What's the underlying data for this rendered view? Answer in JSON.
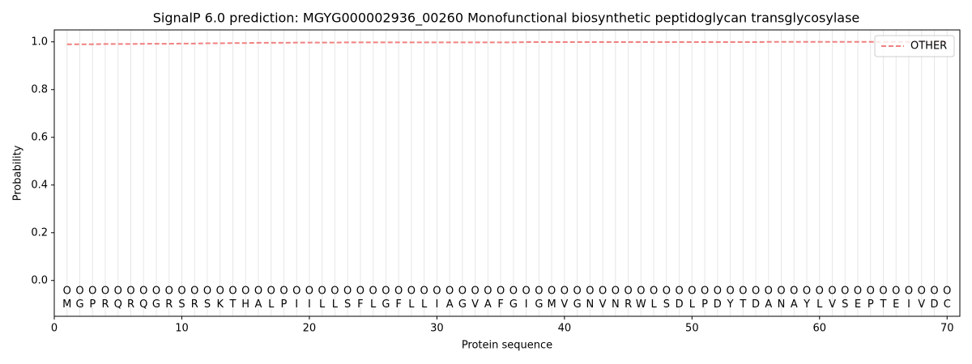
{
  "chart_data": {
    "type": "line",
    "title": "SignalP 6.0 prediction: MGYG000002936_00260 Monofunctional biosynthetic peptidoglycan transglycosylase",
    "xlabel": "Protein sequence",
    "ylabel": "Probability",
    "x": [
      1,
      2,
      3,
      4,
      5,
      6,
      7,
      8,
      9,
      10,
      11,
      12,
      13,
      14,
      15,
      16,
      17,
      18,
      19,
      20,
      21,
      22,
      23,
      24,
      25,
      26,
      27,
      28,
      29,
      30,
      31,
      32,
      33,
      34,
      35,
      36,
      37,
      38,
      39,
      40,
      41,
      42,
      43,
      44,
      45,
      46,
      47,
      48,
      49,
      50,
      51,
      52,
      53,
      54,
      55,
      56,
      57,
      58,
      59,
      60,
      61,
      62,
      63,
      64,
      65,
      66,
      67,
      68,
      69,
      70
    ],
    "residues": [
      "M",
      "G",
      "P",
      "R",
      "Q",
      "R",
      "Q",
      "G",
      "R",
      "S",
      "R",
      "S",
      "K",
      "T",
      "H",
      "A",
      "L",
      "P",
      "I",
      "I",
      "L",
      "L",
      "S",
      "F",
      "L",
      "G",
      "F",
      "L",
      "L",
      "I",
      "A",
      "G",
      "V",
      "A",
      "F",
      "G",
      "I",
      "G",
      "M",
      "V",
      "G",
      "N",
      "V",
      "N",
      "R",
      "W",
      "L",
      "S",
      "D",
      "L",
      "P",
      "D",
      "Y",
      "T",
      "D",
      "A",
      "N",
      "A",
      "Y",
      "L",
      "V",
      "S",
      "E",
      "P",
      "T",
      "E",
      "I",
      "V",
      "D",
      "C"
    ],
    "states": [
      "O",
      "O",
      "O",
      "O",
      "O",
      "O",
      "O",
      "O",
      "O",
      "O",
      "O",
      "O",
      "O",
      "O",
      "O",
      "O",
      "O",
      "O",
      "O",
      "O",
      "O",
      "O",
      "O",
      "O",
      "O",
      "O",
      "O",
      "O",
      "O",
      "O",
      "O",
      "O",
      "O",
      "O",
      "O",
      "O",
      "O",
      "O",
      "O",
      "O",
      "O",
      "O",
      "O",
      "O",
      "O",
      "O",
      "O",
      "O",
      "O",
      "O",
      "O",
      "O",
      "O",
      "O",
      "O",
      "O",
      "O",
      "O",
      "O",
      "O",
      "O",
      "O",
      "O",
      "O",
      "O",
      "O",
      "O",
      "O",
      "O",
      "O"
    ],
    "series": [
      {
        "name": "OTHER",
        "color": "#f08080",
        "dashed": true,
        "values": [
          0.99,
          0.99,
          0.99,
          0.991,
          0.991,
          0.991,
          0.992,
          0.992,
          0.992,
          0.993,
          0.993,
          0.994,
          0.994,
          0.995,
          0.995,
          0.996,
          0.996,
          0.996,
          0.997,
          0.997,
          0.997,
          0.997,
          0.998,
          0.998,
          0.998,
          0.998,
          0.998,
          0.998,
          0.998,
          0.998,
          0.998,
          0.998,
          0.998,
          0.998,
          0.998,
          0.998,
          0.999,
          0.999,
          0.999,
          0.999,
          0.999,
          0.999,
          0.999,
          0.999,
          0.999,
          0.999,
          0.999,
          0.999,
          0.999,
          0.999,
          0.999,
          0.999,
          0.999,
          0.999,
          0.999,
          1.0,
          1.0,
          1.0,
          1.0,
          1.0,
          1.0,
          1.0,
          1.0,
          1.0,
          1.0,
          1.0,
          1.0,
          1.0,
          1.0,
          1.0
        ]
      }
    ],
    "xlim": [
      0,
      71
    ],
    "ylim": [
      -0.15,
      1.05
    ],
    "xticks": [
      0,
      10,
      20,
      30,
      40,
      50,
      60,
      70
    ],
    "yticks": [
      {
        "value": 0,
        "label": "0.0"
      },
      0.2,
      0.4,
      0.6,
      0.8,
      {
        "value": 1,
        "label": "1.0"
      }
    ],
    "legend": "upper right"
  }
}
